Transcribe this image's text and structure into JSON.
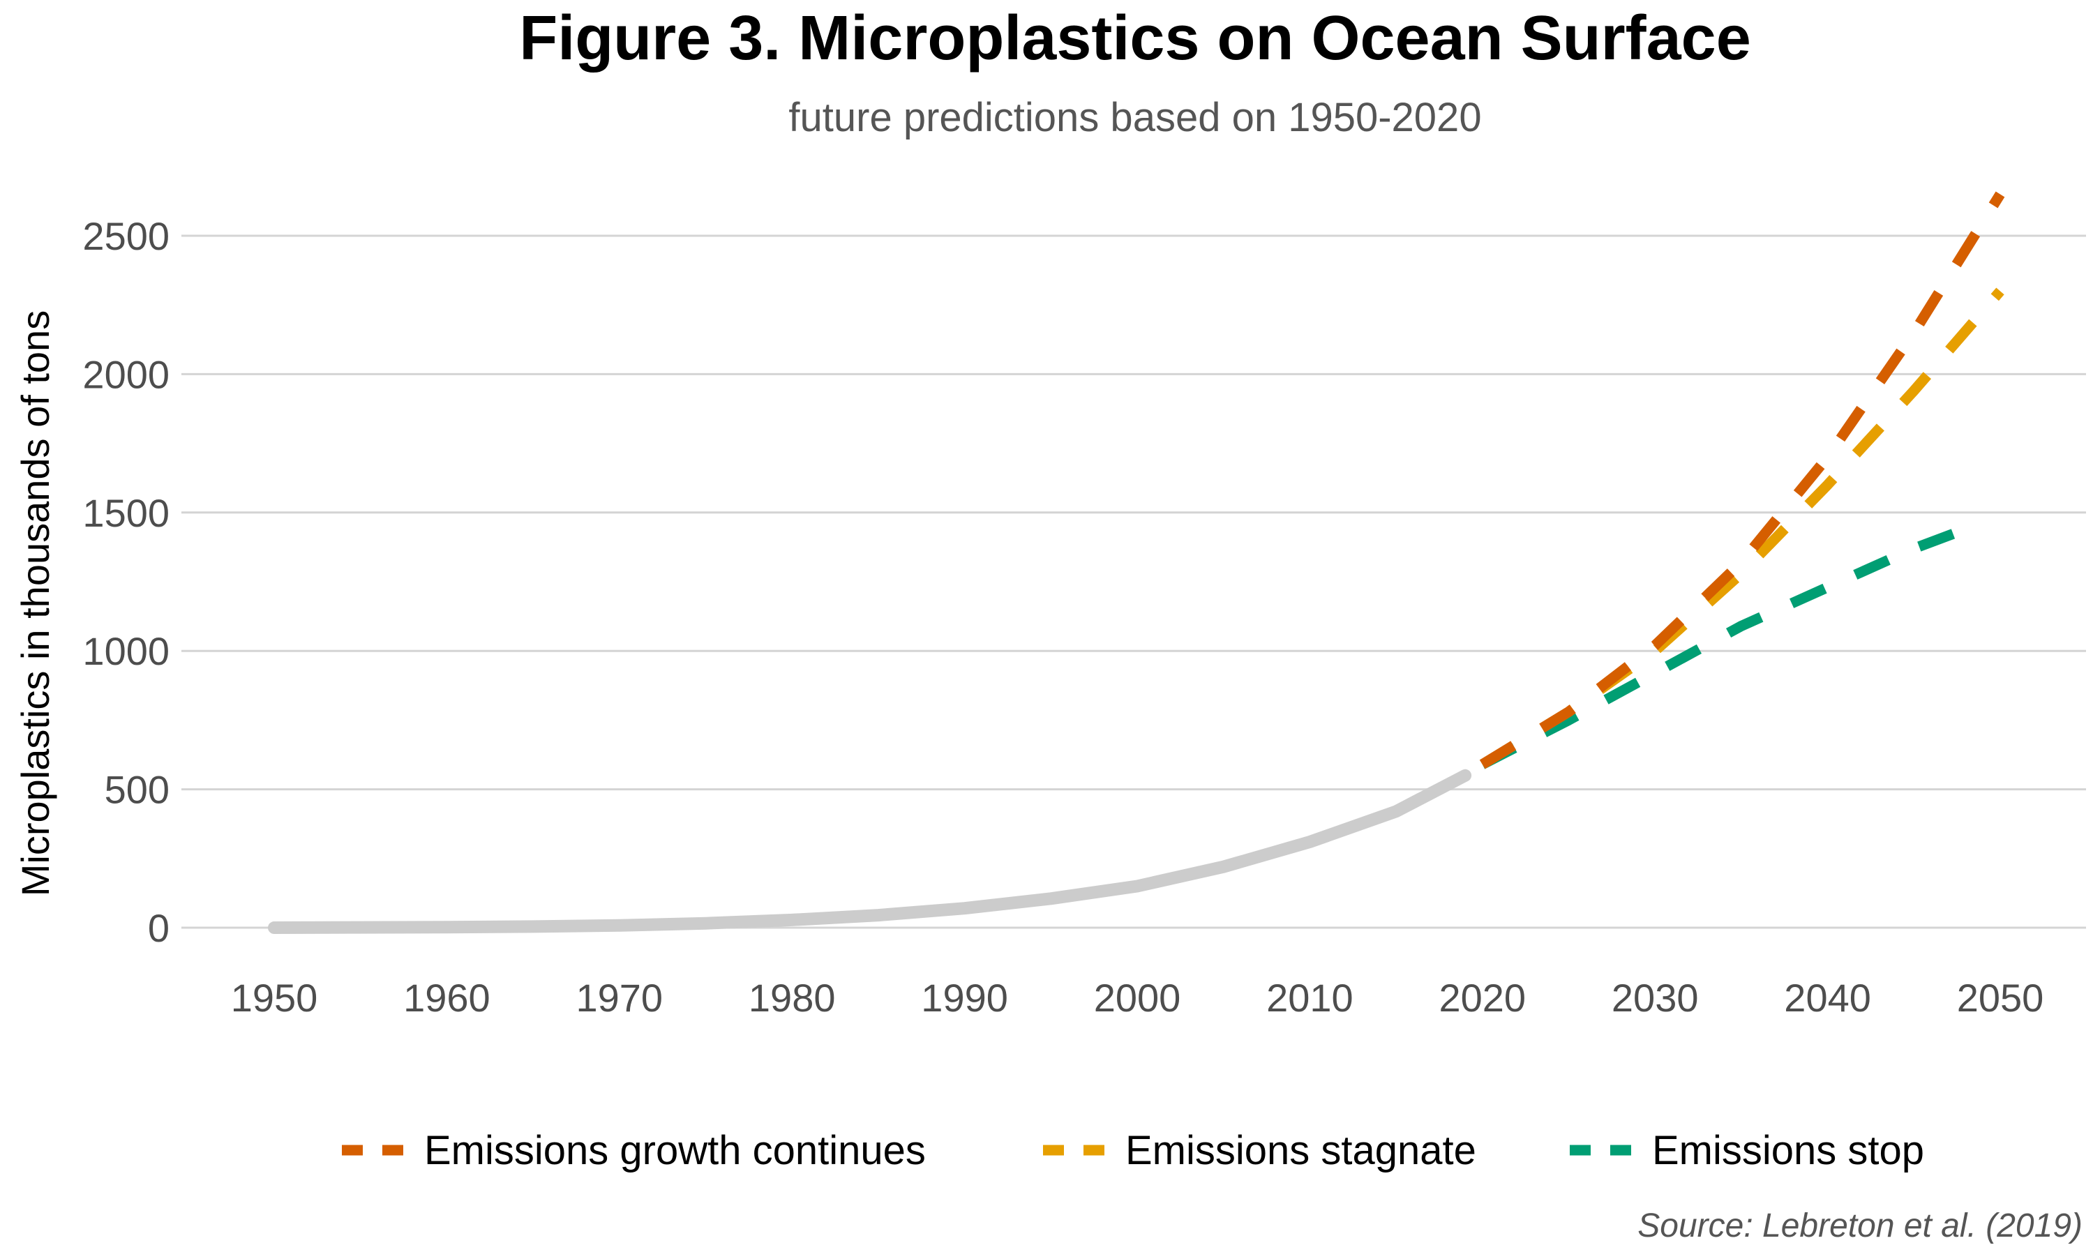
{
  "chart_data": {
    "type": "line",
    "title": "Figure 3. Microplastics on Ocean Surface",
    "subtitle": "future predictions based on 1950-2020",
    "xlabel": "",
    "ylabel": "Microplastics in thousands of tons",
    "xlim": [
      1950,
      2050
    ],
    "ylim": [
      0,
      2600
    ],
    "x_ticks": [
      1950,
      1960,
      1970,
      1980,
      1990,
      2000,
      2010,
      2020,
      2030,
      2040,
      2050
    ],
    "y_ticks": [
      0,
      500,
      1000,
      1500,
      2000,
      2500
    ],
    "grid": "horizontal",
    "legend_position": "bottom",
    "historical": {
      "color": "#cccccc",
      "x": [
        1950,
        1955,
        1960,
        1965,
        1970,
        1975,
        1980,
        1985,
        1990,
        1995,
        2000,
        2005,
        2010,
        2015,
        2019
      ],
      "y": [
        0,
        1,
        2,
        4,
        8,
        16,
        28,
        45,
        70,
        105,
        150,
        220,
        310,
        420,
        550
      ]
    },
    "series": [
      {
        "name": "Emissions growth continues",
        "color": "#d55e00",
        "x": [
          2020,
          2025,
          2030,
          2035,
          2040,
          2045,
          2050
        ],
        "y": [
          590,
          780,
          1020,
          1320,
          1700,
          2150,
          2650
        ]
      },
      {
        "name": "Emissions stagnate",
        "color": "#e69f00",
        "x": [
          2020,
          2025,
          2030,
          2035,
          2040,
          2045,
          2050
        ],
        "y": [
          590,
          780,
          1000,
          1280,
          1600,
          1940,
          2300
        ]
      },
      {
        "name": "Emissions stop",
        "color": "#009e73",
        "x": [
          2020,
          2025,
          2030,
          2035,
          2040,
          2045,
          2048
        ],
        "y": [
          590,
          750,
          920,
          1090,
          1230,
          1370,
          1440
        ]
      }
    ],
    "source": "Source: Lebreton et al. (2019)"
  }
}
